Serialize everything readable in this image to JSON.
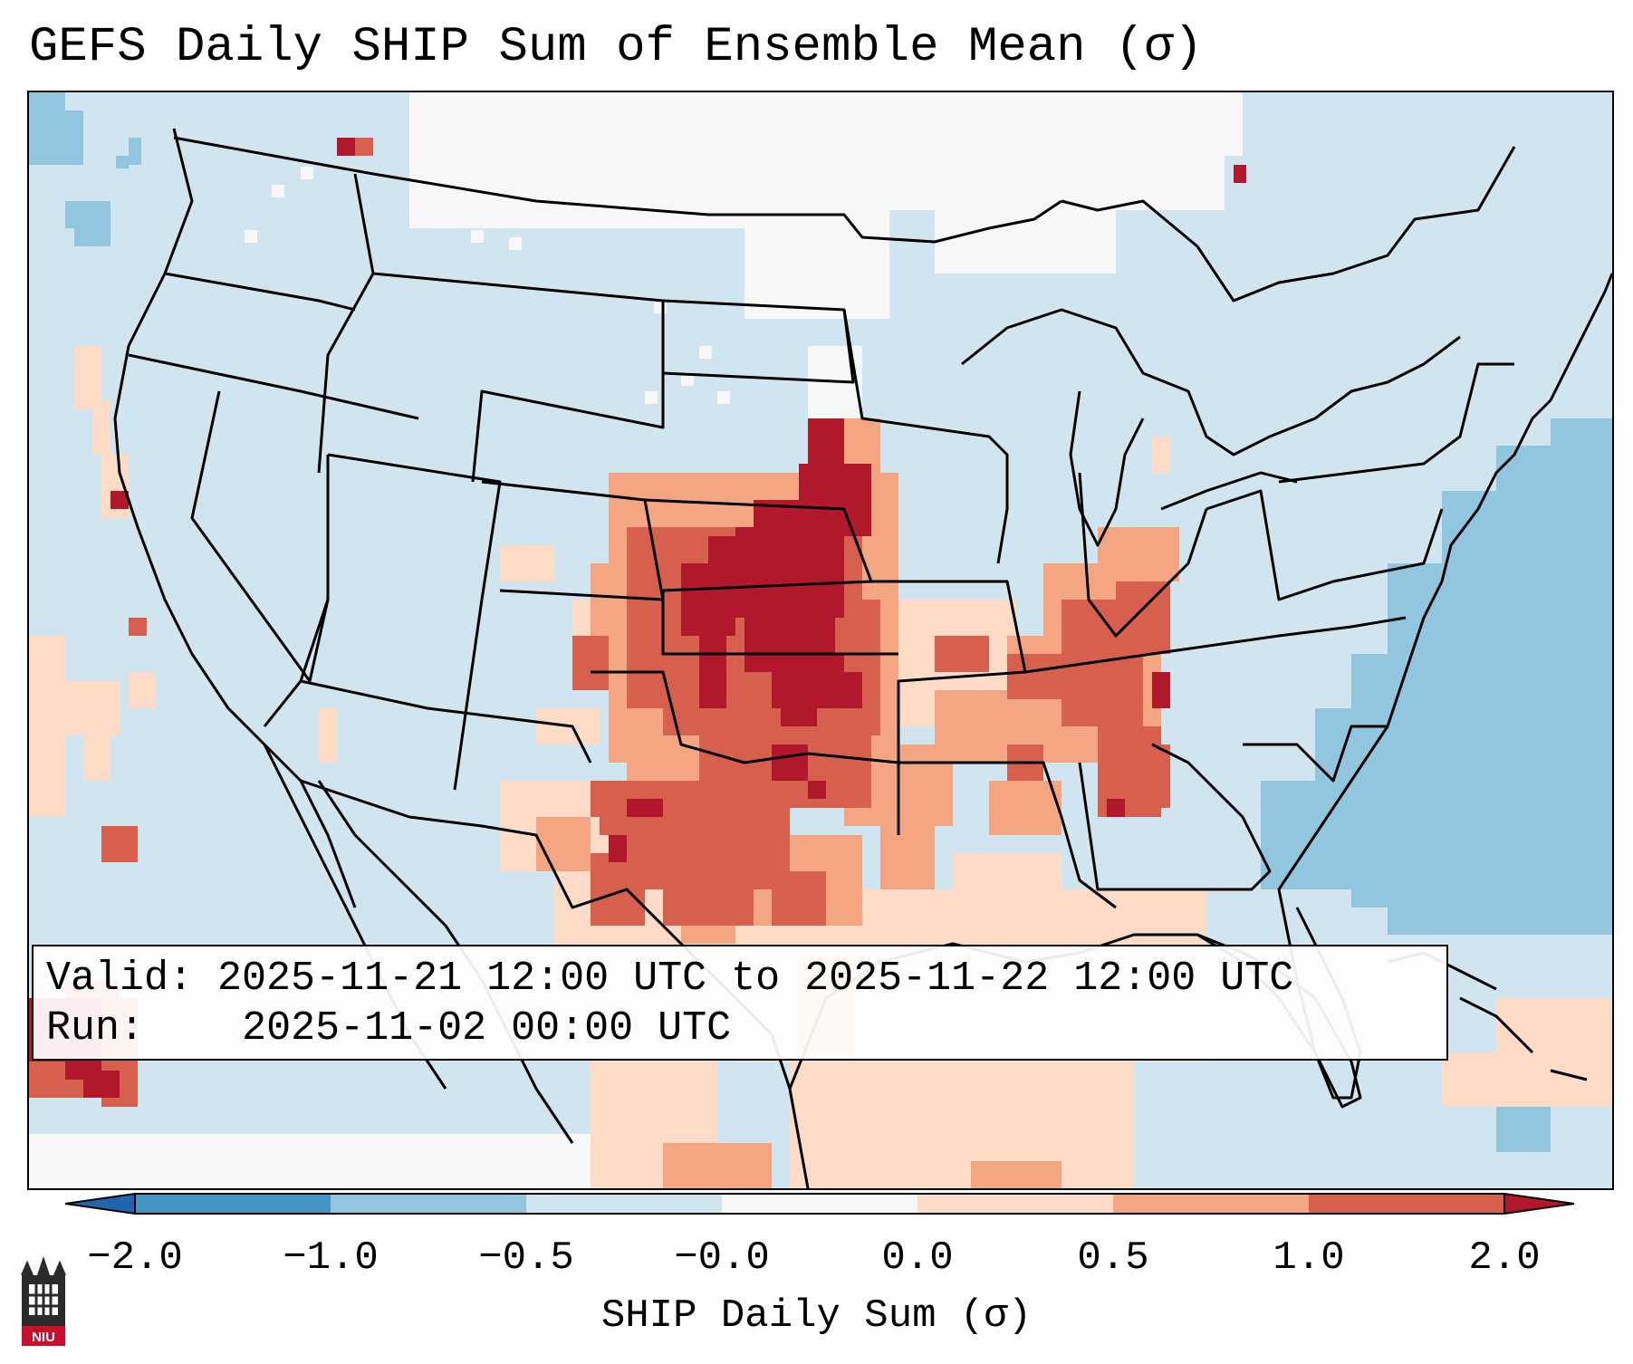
{
  "title": "GEFS Daily SHIP Sum of Ensemble Mean (σ)",
  "info": {
    "valid_label": "Valid:",
    "valid_value": "2025-11-21 12:00 UTC to 2025-11-22 12:00 UTC",
    "run_label": "Run:",
    "run_value": "2025-11-02 00:00 UTC"
  },
  "colorbar": {
    "label": "SHIP Daily Sum (σ)",
    "ticks": [
      "−2.0",
      "−1.0",
      "−0.5",
      "−0.0",
      "0.0",
      "0.5",
      "1.0",
      "2.0"
    ],
    "colors": [
      "#4393c3",
      "#92c5de",
      "#d1e5f0",
      "#f7f7f7",
      "#fddbc7",
      "#f4a582",
      "#d6604d"
    ],
    "under_color": "#2166ac",
    "over_color": "#b2182b"
  },
  "logo": {
    "text": "NIU",
    "icon": "niu-building-logo-icon"
  }
}
